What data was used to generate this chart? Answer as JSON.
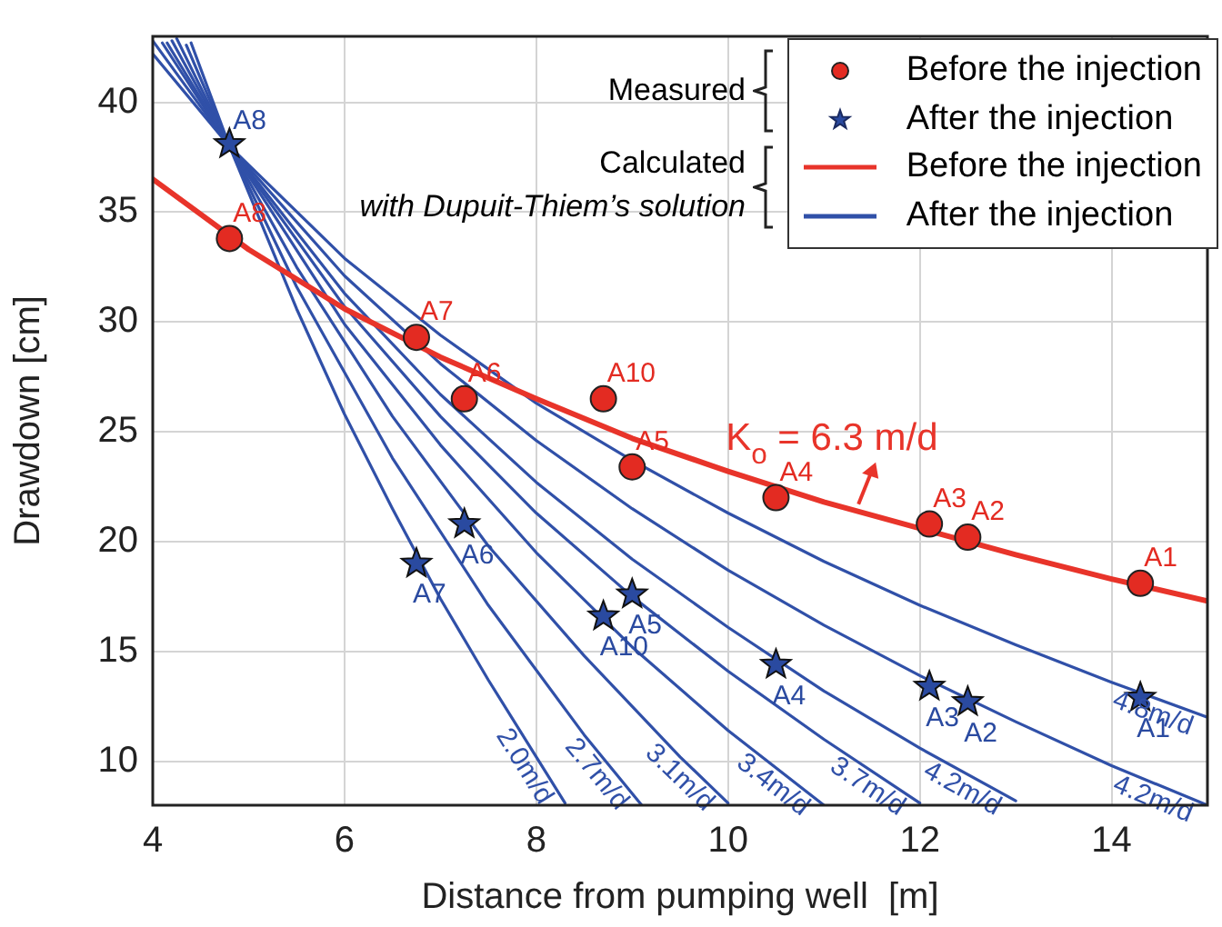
{
  "chart_data": {
    "type": "line",
    "xlabel": "Distance from pumping well  [m]",
    "ylabel": "Drawdown [cm]",
    "xlim": [
      4,
      15
    ],
    "xticks": [
      4,
      6,
      8,
      10,
      12,
      14
    ],
    "ylim": [
      8,
      43
    ],
    "yticks": [
      10,
      15,
      20,
      25,
      30,
      35,
      40
    ],
    "grid": true,
    "legend": "top right",
    "annotations": [
      "Measured",
      "Calculated",
      "with Dupuit-Thiem’s solution",
      "After the injection",
      {
        "text": "K$_{o}$ = 6.3 m/d",
        "x": 11.36,
        "y": 21.7
      }
    ],
    "series": [
      {
        "name": "Before the injection",
        "type": "scatter",
        "marker": "circle",
        "color": "#e32b22",
        "x": [
          4.8,
          6.75,
          7.25,
          8.7,
          9.0,
          10.5,
          12.1,
          12.5,
          14.3
        ],
        "values": [
          33.8,
          29.3,
          26.5,
          26.5,
          23.4,
          22.0,
          20.8,
          20.2,
          18.1
        ],
        "value_labels": [
          "A8",
          "A7",
          "A6",
          "A10",
          "A5",
          "A4",
          "A3",
          "A2",
          "A1"
        ]
      },
      {
        "name": "After the injection",
        "type": "scatter",
        "marker": "star",
        "color": "#2a4aa0",
        "x": [
          4.8,
          6.75,
          7.25,
          8.7,
          9.0,
          10.5,
          12.1,
          12.5,
          14.3
        ],
        "values": [
          38.1,
          19.0,
          20.8,
          16.6,
          17.6,
          14.4,
          13.4,
          12.7,
          12.9
        ],
        "value_labels": [
          "A8",
          "A7",
          "A6",
          "A10",
          "A5",
          "A4",
          "A3",
          "A2",
          "A1"
        ]
      },
      {
        "name": "Before the injection",
        "color": "#e8342a",
        "x": [
          4,
          5,
          6,
          7,
          8,
          9,
          10,
          11,
          12,
          13,
          14,
          15
        ],
        "values": [
          36.5,
          33.3,
          30.6,
          28.4,
          26.5,
          24.7,
          23.2,
          21.8,
          20.6,
          19.4,
          18.3,
          17.3
        ]
      },
      {
        "name": "2.0m/d",
        "color": "#3050a8",
        "x": [
          4.4,
          4.8,
          5.5,
          6,
          6.5,
          7,
          7.5,
          8,
          8.3
        ],
        "values": [
          42.7,
          38,
          30.6,
          25.8,
          21.5,
          17.4,
          13.7,
          10.2,
          8.1
        ]
      },
      {
        "name": "2.7m/d",
        "color": "#3050a8",
        "x": [
          4.35,
          4.8,
          5.5,
          6.5,
          7.5,
          8.5,
          9.1
        ],
        "values": [
          42.6,
          38,
          31.6,
          23.8,
          17.1,
          11.2,
          8.0
        ]
      },
      {
        "name": "3.1m/d",
        "color": "#3050a8",
        "x": [
          4.25,
          4.8,
          5.5,
          6.5,
          7.5,
          8.5,
          9.5,
          10
        ],
        "values": [
          42.9,
          38,
          32.5,
          25.7,
          19.8,
          14.8,
          10.2,
          8.1
        ]
      },
      {
        "name": "3.4m/d",
        "color": "#3050a8",
        "x": [
          4.2,
          4.8,
          6,
          7,
          8,
          9,
          10,
          11
        ],
        "values": [
          42.8,
          38,
          29.9,
          24.4,
          19.5,
          15.2,
          11.4,
          8.0
        ]
      },
      {
        "name": "3.7m/d",
        "color": "#3050a8",
        "x": [
          4.15,
          4.8,
          6,
          7,
          8,
          9,
          10,
          11,
          12
        ],
        "values": [
          42.7,
          38,
          30.7,
          25.7,
          21.3,
          17.5,
          14.1,
          11.0,
          8.1
        ]
      },
      {
        "name": "4.2m/d",
        "color": "#3050a8",
        "x": [
          4.1,
          4.8,
          6,
          7,
          8,
          9,
          10,
          11,
          12,
          13
        ],
        "values": [
          42.7,
          38,
          31.3,
          26.7,
          22.7,
          19.2,
          16.1,
          13.2,
          10.6,
          8.2
        ]
      },
      {
        "name": "4.2m/d",
        "color": "#3050a8",
        "x": [
          4,
          4.8,
          6,
          7,
          8,
          9,
          10,
          11,
          12,
          13,
          14,
          15
        ],
        "values": [
          42.8,
          38,
          32.1,
          28.1,
          24.6,
          21.5,
          18.7,
          16.2,
          13.9,
          11.8,
          9.8,
          8.0
        ]
      },
      {
        "name": "4.8m/d",
        "color": "#3050a8",
        "x": [
          4,
          4.8,
          6,
          7,
          8,
          9,
          10,
          11,
          12,
          13,
          14,
          15
        ],
        "values": [
          42.2,
          38,
          32.9,
          29.4,
          26.3,
          23.7,
          21.3,
          19.1,
          17.1,
          15.3,
          13.6,
          12.0
        ]
      }
    ]
  }
}
